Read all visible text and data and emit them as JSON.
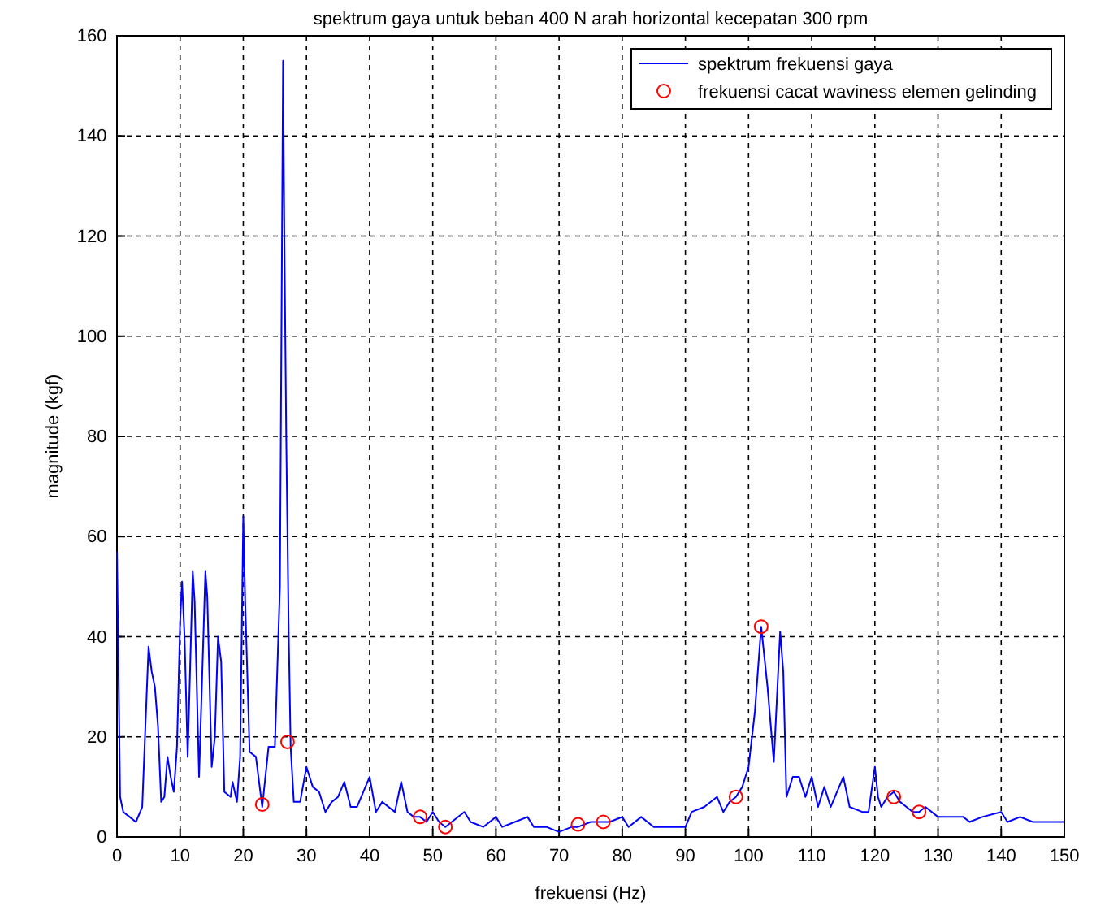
{
  "chart_data": {
    "type": "line",
    "title": "spektrum gaya untuk beban 400 N arah horizontal kecepatan 300 rpm",
    "xlabel": "frekuensi (Hz)",
    "ylabel": "magnitude (kgf)",
    "xlim": [
      0,
      150
    ],
    "xticks": [
      0,
      10,
      20,
      30,
      40,
      50,
      60,
      70,
      80,
      90,
      100,
      110,
      120,
      130,
      140,
      150
    ],
    "ylim": [
      0,
      160
    ],
    "yticks": [
      0,
      20,
      40,
      60,
      80,
      100,
      120,
      140,
      160
    ],
    "grid": true,
    "legend": "top right",
    "series": [
      {
        "name": "spektrum frekuensi gaya",
        "color": "#0000ff",
        "marker": "none",
        "x": [
          0,
          0.2,
          0.5,
          1,
          2,
          3,
          4,
          5,
          5.5,
          6,
          6.5,
          7,
          7.5,
          8,
          8.5,
          9,
          9.5,
          10,
          10.3,
          10.7,
          11.2,
          12,
          12.3,
          13,
          14,
          14.3,
          15,
          15.5,
          16,
          16.5,
          17,
          18,
          18.3,
          19,
          19.5,
          20,
          20.3,
          21,
          22,
          23,
          24,
          25,
          25.8,
          26.3,
          26.5,
          26.8,
          27.2,
          27.5,
          28,
          29,
          30,
          31,
          32,
          33,
          34,
          35,
          36,
          37,
          38,
          40,
          41,
          42,
          44,
          45,
          46,
          47,
          48,
          49,
          50,
          51,
          52,
          53,
          55,
          56,
          58,
          60,
          61,
          63,
          65,
          66,
          68,
          70,
          72,
          73,
          75,
          77,
          78,
          80,
          81,
          83,
          85,
          87,
          90,
          91,
          93,
          95,
          96,
          97,
          98,
          99,
          100,
          101,
          102,
          102.5,
          103,
          104,
          105,
          105.5,
          106,
          107,
          108,
          109,
          110,
          111,
          112,
          113,
          115,
          116,
          118,
          119,
          120,
          120.5,
          121,
          122,
          123,
          124,
          125,
          126,
          127,
          128,
          130,
          132,
          134,
          135,
          137,
          140,
          141,
          143,
          145,
          147,
          150
        ],
        "values": [
          57,
          38,
          8,
          5,
          4,
          3,
          6,
          38,
          33,
          30,
          22,
          7,
          8,
          16,
          12,
          9,
          18,
          43,
          51,
          40,
          16,
          53,
          47,
          12,
          53,
          48,
          14,
          20,
          40,
          35,
          9,
          8,
          11,
          7,
          16,
          64,
          47,
          17,
          16,
          6,
          18,
          18,
          50,
          155,
          120,
          80,
          40,
          18,
          7,
          7,
          14,
          10,
          9,
          5,
          7,
          8,
          11,
          6,
          6,
          12,
          5,
          7,
          5,
          11,
          5,
          4,
          4,
          3,
          5,
          3,
          2,
          3,
          5,
          3,
          2,
          4,
          2,
          3,
          4,
          2,
          2,
          1,
          2,
          2,
          3,
          3,
          3,
          4,
          2,
          4,
          2,
          2,
          2,
          5,
          6,
          8,
          5,
          7,
          8,
          10,
          14,
          25,
          42,
          36,
          30,
          15,
          41,
          33,
          8,
          12,
          12,
          8,
          12,
          6,
          10,
          6,
          12,
          6,
          5,
          5,
          14,
          8,
          6,
          8,
          9,
          7,
          6,
          5,
          5,
          6,
          4,
          4,
          4,
          3,
          4,
          5,
          3,
          4,
          3,
          3,
          3
        ]
      },
      {
        "name": "frekuensi cacat waviness elemen gelinding",
        "color": "#ff0000",
        "type": "scatter",
        "marker": "circle",
        "x": [
          23,
          27,
          48,
          52,
          73,
          77,
          98,
          102,
          123,
          127
        ],
        "values": [
          6.5,
          19,
          4,
          2,
          2.5,
          3,
          8,
          42,
          8,
          5
        ]
      }
    ]
  }
}
